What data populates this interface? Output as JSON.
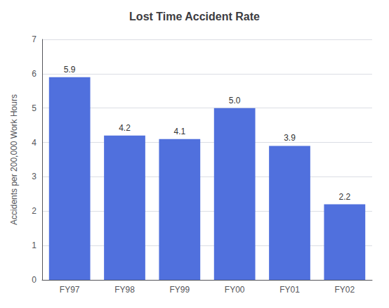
{
  "chart_data": {
    "type": "bar",
    "title": "Lost Time Accident Rate",
    "ylabel": "Accidents per 200,000 Work Hours",
    "categories": [
      "FY97",
      "FY98",
      "FY99",
      "FY00",
      "FY01",
      "FY02"
    ],
    "values": [
      5.9,
      4.2,
      4.1,
      5.0,
      3.9,
      2.2
    ],
    "value_labels": [
      "5.9",
      "4.2",
      "4.1",
      "5.0",
      "3.9",
      "2.2"
    ],
    "data_labels": true,
    "ylim": [
      0,
      7
    ],
    "yticks": [
      0,
      1,
      2,
      3,
      4,
      5,
      6,
      7
    ],
    "grid": true
  }
}
